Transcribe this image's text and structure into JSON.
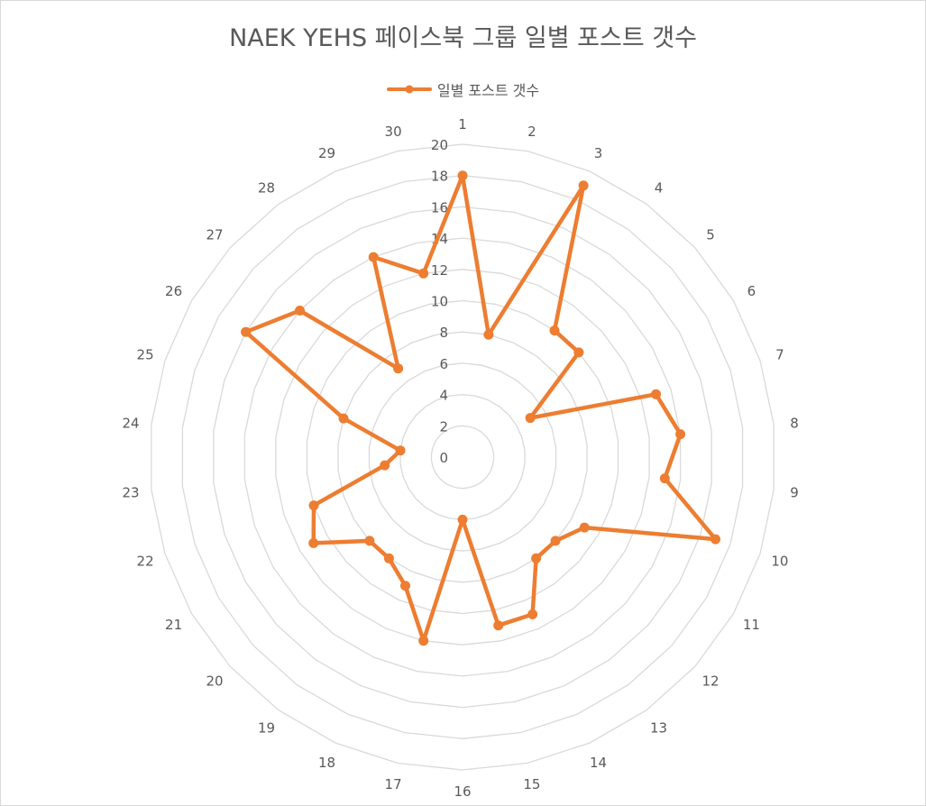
{
  "chart_data": {
    "type": "radar",
    "title": "NAEK YEHS 페이스북 그룹 일별 포스트 갯수",
    "categories": [
      "1",
      "2",
      "3",
      "4",
      "5",
      "6",
      "7",
      "8",
      "9",
      "10",
      "11",
      "12",
      "13",
      "14",
      "15",
      "16",
      "17",
      "18",
      "19",
      "20",
      "21",
      "22",
      "23",
      "24",
      "25",
      "26",
      "27",
      "28",
      "29",
      "30"
    ],
    "series": [
      {
        "name": "일별 포스트 갯수",
        "color": "#ED7D31",
        "values": [
          18,
          8,
          19,
          10,
          10,
          5,
          13,
          14,
          13,
          17,
          9,
          8,
          8,
          11,
          11,
          4,
          12,
          9,
          8,
          8,
          11,
          10,
          5,
          4,
          8,
          16,
          14,
          7,
          14,
          12
        ]
      }
    ],
    "rmin": 0,
    "rmax": 20,
    "tick_step": 2,
    "tick_labels": [
      "0",
      "2",
      "4",
      "6",
      "8",
      "10",
      "12",
      "14",
      "16",
      "18",
      "20"
    ],
    "grid": true,
    "legend_position": "top"
  }
}
